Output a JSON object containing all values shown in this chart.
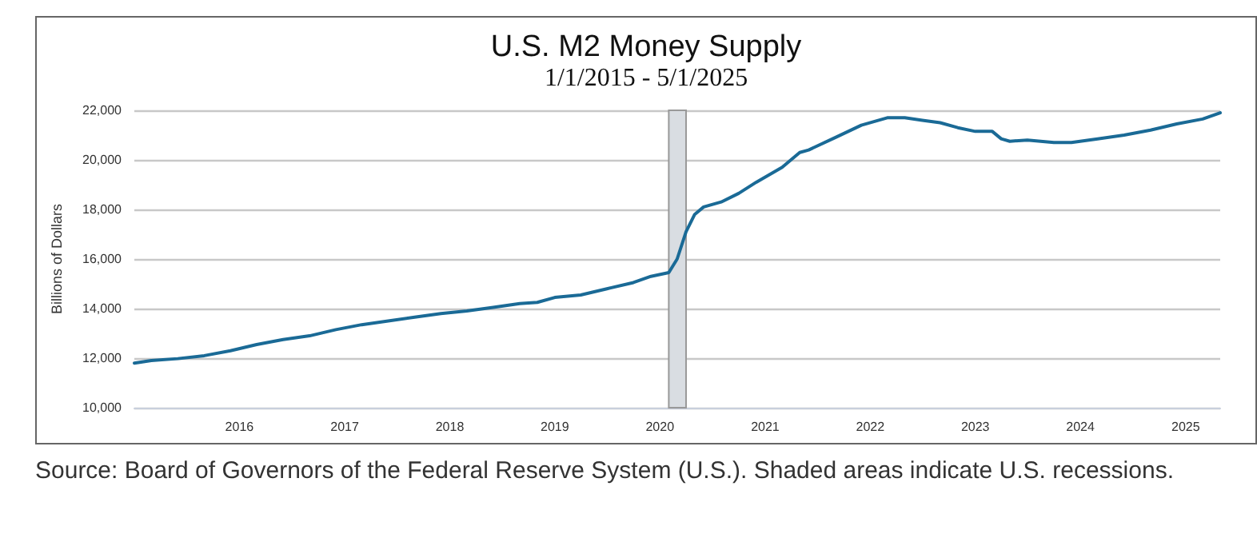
{
  "chart_data": {
    "type": "line",
    "title": "U.S. M2 Money Supply",
    "subtitle": "1/1/2015 - 5/1/2025",
    "ylabel": "Billions of Dollars",
    "annotations": [
      "Source: Board of Governors of the Federal Reserve System (U.S.). Shaded areas indicate U.S. recessions."
    ],
    "x": [
      "2015-01",
      "2015-03",
      "2015-06",
      "2015-09",
      "2015-12",
      "2016-03",
      "2016-06",
      "2016-09",
      "2016-12",
      "2017-03",
      "2017-06",
      "2017-09",
      "2017-12",
      "2018-03",
      "2018-06",
      "2018-09",
      "2018-11",
      "2019-01",
      "2019-04",
      "2019-07",
      "2019-10",
      "2019-12",
      "2020-02",
      "2020-03",
      "2020-04",
      "2020-05",
      "2020-06",
      "2020-08",
      "2020-10",
      "2020-12",
      "2021-03",
      "2021-05",
      "2021-06",
      "2021-09",
      "2021-12",
      "2022-03",
      "2022-05",
      "2022-07",
      "2022-09",
      "2022-11",
      "2023-01",
      "2023-03",
      "2023-04",
      "2023-05",
      "2023-07",
      "2023-10",
      "2023-12",
      "2024-03",
      "2024-06",
      "2024-09",
      "2024-12",
      "2025-03",
      "2025-05"
    ],
    "series": [
      {
        "color": "#1a6a96",
        "values": [
          11800,
          11900,
          11980,
          12100,
          12300,
          12550,
          12750,
          12900,
          13150,
          13350,
          13500,
          13650,
          13800,
          13900,
          14050,
          14200,
          14250,
          14450,
          14550,
          14800,
          15050,
          15300,
          15450,
          16000,
          17100,
          17800,
          18100,
          18300,
          18650,
          19100,
          19700,
          20300,
          20400,
          20900,
          21400,
          21700,
          21700,
          21600,
          21500,
          21300,
          21150,
          21150,
          20850,
          20750,
          20800,
          20700,
          20700,
          20850,
          21000,
          21200,
          21450,
          21650,
          21900
        ]
      }
    ],
    "xlim": [
      "2015-01",
      "2025-05"
    ],
    "xticks": [
      "2016",
      "2017",
      "2018",
      "2019",
      "2020",
      "2021",
      "2022",
      "2023",
      "2024",
      "2025"
    ],
    "ylim": [
      10000,
      22000
    ],
    "yticks": [
      {
        "value": 10000,
        "label": "10,000"
      },
      {
        "value": 12000,
        "label": "12,000"
      },
      {
        "value": 14000,
        "label": "14,000"
      },
      {
        "value": 16000,
        "label": "16,000"
      },
      {
        "value": 18000,
        "label": "18,000"
      },
      {
        "value": 20000,
        "label": "20,000"
      },
      {
        "value": 22000,
        "label": "22,000"
      }
    ],
    "bands": [
      {
        "axis": "x",
        "from": "2020-02",
        "to": "2020-04",
        "color": "#d9dde2"
      }
    ],
    "grid": "y",
    "marker": "none",
    "line_style": "solid"
  }
}
